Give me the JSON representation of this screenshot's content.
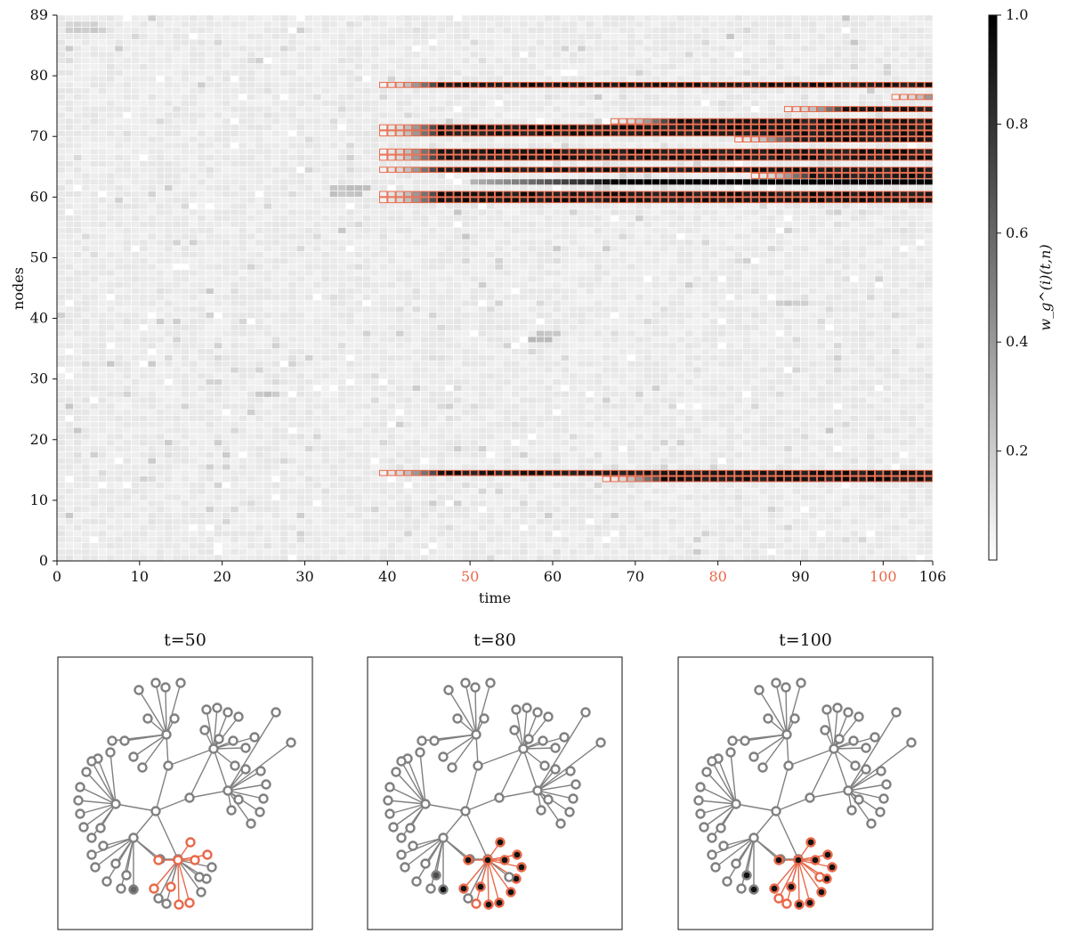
{
  "chart_data": [
    {
      "type": "heatmap",
      "title": "",
      "xlabel": "time",
      "ylabel": "nodes",
      "xlim": [
        0,
        106
      ],
      "ylim": [
        0,
        89
      ],
      "x_ticks": [
        0,
        10,
        20,
        30,
        40,
        50,
        60,
        70,
        80,
        90,
        100,
        106
      ],
      "x_ticks_highlighted": [
        50,
        80,
        100
      ],
      "y_ticks": [
        0,
        10,
        20,
        30,
        40,
        50,
        60,
        70,
        80,
        89
      ],
      "colorbar": {
        "label": "w_g^(i)(t,n)",
        "range": [
          0,
          1
        ],
        "ticks": [
          "0.2",
          "0.4",
          "0.6",
          "0.8",
          "1.0"
        ],
        "tick_values": [
          0.2,
          0.4,
          0.6,
          0.8,
          1.0
        ]
      },
      "highlight_color": "#e8694a",
      "background_value": 0.08,
      "active_rows": [
        {
          "node": 78,
          "start": 39
        },
        {
          "node": 76,
          "start": 101
        },
        {
          "node": 74,
          "start": 88
        },
        {
          "node": 72,
          "start": 67
        },
        {
          "node": 71,
          "start": 39
        },
        {
          "node": 70,
          "start": 39
        },
        {
          "node": 69,
          "start": 82
        },
        {
          "node": 67,
          "start": 39
        },
        {
          "node": 66,
          "start": 39
        },
        {
          "node": 64,
          "start": 39
        },
        {
          "node": 63,
          "start": 84
        },
        {
          "node": 60,
          "start": 39
        },
        {
          "node": 59,
          "start": 39
        },
        {
          "node": 14,
          "start": 39
        },
        {
          "node": 13,
          "start": 66
        }
      ],
      "dark_unboxed_rows": [
        {
          "node": 62,
          "start": 50
        }
      ],
      "noise_patches": [
        {
          "node": 87,
          "t0": 1,
          "t1": 5,
          "value": 0.18
        },
        {
          "node": 88,
          "t0": 1,
          "t1": 4,
          "value": 0.15
        },
        {
          "node": 61,
          "t0": 33,
          "t1": 37,
          "value": 0.22
        },
        {
          "node": 60,
          "t0": 33,
          "t1": 36,
          "value": 0.2
        },
        {
          "node": 36,
          "t0": 57,
          "t1": 59,
          "value": 0.25
        },
        {
          "node": 37,
          "t0": 58,
          "t1": 60,
          "value": 0.2
        },
        {
          "node": 27,
          "t0": 24,
          "t1": 26,
          "value": 0.2
        },
        {
          "node": 42,
          "t0": 87,
          "t1": 90,
          "value": 0.18
        }
      ]
    },
    {
      "type": "network",
      "panels": [
        {
          "title": "t=50",
          "time": 50
        },
        {
          "title": "t=80",
          "time": 80
        },
        {
          "title": "t=100",
          "time": 100
        }
      ],
      "node_colors": {
        "default_fill": "#ffffff",
        "default_stroke": "#808080",
        "highlight_stroke": "#e8694a",
        "active_fill": "#111111",
        "edge": "#808080"
      }
    }
  ]
}
